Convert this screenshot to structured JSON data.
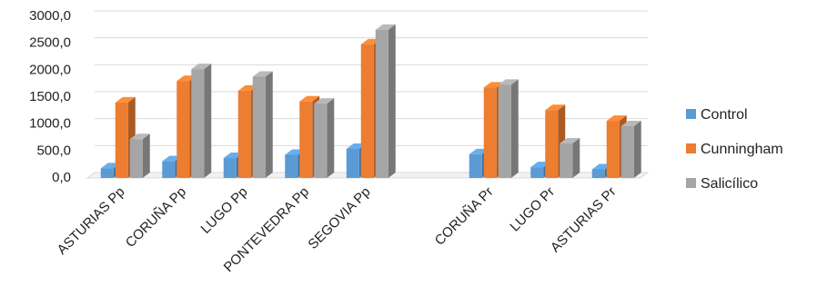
{
  "chart_data": {
    "type": "bar",
    "style": "3d-clustered-column",
    "categories": [
      "ASTURIAS Pp",
      "CORUÑA Pp",
      "LUGO Pp",
      "PONTEVEDRA Pp",
      "SEGOVIA Pp",
      "",
      "CORUÑA Pr",
      "LUGO Pr",
      "ASTURIAS Pr"
    ],
    "series": [
      {
        "name": "Control",
        "color": "#5b9bd5",
        "values": [
          180,
          310,
          370,
          430,
          540,
          null,
          440,
          200,
          160
        ]
      },
      {
        "name": "Cunningham",
        "color": "#ed7d31",
        "values": [
          1400,
          1800,
          1620,
          1420,
          2480,
          null,
          1680,
          1260,
          1060
        ]
      },
      {
        "name": "Salicílico",
        "color": "#a5a5a5",
        "values": [
          720,
          2020,
          1880,
          1380,
          2750,
          null,
          1730,
          640,
          960
        ]
      }
    ],
    "yticks": [
      "0,0",
      "500,0",
      "1000,0",
      "1500,0",
      "2000,0",
      "2500,0",
      "3000,0"
    ],
    "ylim": [
      0,
      3000
    ],
    "grid": true,
    "legend": "right"
  }
}
